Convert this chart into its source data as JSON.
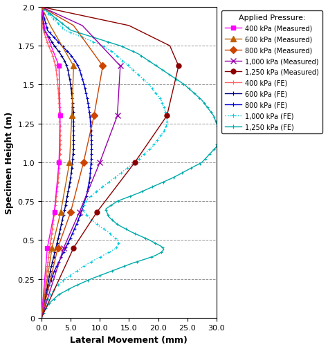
{
  "xlabel": "Lateral Movement (mm)",
  "ylabel": "Specimen Height (m)",
  "xlim": [
    0,
    30
  ],
  "ylim": [
    0,
    2
  ],
  "xticks": [
    0.0,
    5.0,
    10.0,
    15.0,
    20.0,
    25.0,
    30.0
  ],
  "xtick_labels": [
    "0.0",
    "5.0",
    "10.0",
    "15.0",
    "20.0",
    "25.0",
    "30.0"
  ],
  "yticks": [
    0,
    0.25,
    0.5,
    0.75,
    1.0,
    1.25,
    1.5,
    1.75,
    2.0
  ],
  "legend_title": "Applied Pressure:",
  "m400_h": [
    0,
    0.45,
    0.68,
    1.0,
    1.3,
    1.62,
    1.85,
    2.0
  ],
  "m400_x": [
    0,
    1.0,
    2.2,
    3.0,
    3.2,
    3.0,
    0.6,
    0
  ],
  "m400_mk_idx": [
    1,
    2,
    3,
    4,
    5
  ],
  "m400_color": "#FF00FF",
  "m600_h": [
    0,
    0.45,
    0.68,
    1.0,
    1.3,
    1.62,
    1.88,
    2.0
  ],
  "m600_x": [
    0,
    1.8,
    3.3,
    4.8,
    5.2,
    5.5,
    1.5,
    0
  ],
  "m600_mk_idx": [
    1,
    2,
    3,
    4,
    5
  ],
  "m600_color": "#C06000",
  "m800_h": [
    0,
    0.45,
    0.68,
    1.0,
    1.3,
    1.62,
    1.88,
    2.0
  ],
  "m800_x": [
    0,
    2.8,
    5.0,
    7.2,
    9.0,
    10.5,
    5.5,
    0
  ],
  "m800_mk_idx": [
    1,
    2,
    3,
    4,
    5
  ],
  "m800_color": "#CC4400",
  "m1000_h": [
    0,
    0.45,
    0.68,
    1.0,
    1.3,
    1.62,
    1.88,
    2.0
  ],
  "m1000_x": [
    0,
    3.8,
    6.5,
    10.0,
    13.0,
    13.5,
    7.0,
    0
  ],
  "m1000_mk_idx": [
    1,
    2,
    3,
    4,
    5
  ],
  "m1000_color": "#9900AA",
  "m1250_h": [
    0,
    0.45,
    0.68,
    1.0,
    1.3,
    1.62,
    1.75,
    1.88,
    2.0
  ],
  "m1250_x": [
    0,
    5.5,
    9.5,
    16.0,
    21.5,
    23.5,
    22.0,
    15.0,
    0
  ],
  "m1250_mk_idx": [
    1,
    2,
    3,
    4,
    5
  ],
  "m1250_color": "#8B0000",
  "fe_400_h": [
    0,
    0.1,
    0.3,
    0.5,
    0.7,
    0.9,
    1.0,
    1.1,
    1.2,
    1.3,
    1.4,
    1.5,
    1.6,
    1.65,
    1.7,
    1.75,
    1.85,
    2.0
  ],
  "fe_400_x": [
    0,
    0.3,
    0.9,
    1.6,
    2.3,
    2.9,
    3.1,
    3.2,
    3.2,
    3.1,
    3.0,
    2.8,
    2.5,
    2.2,
    1.8,
    1.2,
    0.3,
    0
  ],
  "fe_400_color": "#FF6666",
  "fe_600_h": [
    0,
    0.1,
    0.3,
    0.5,
    0.7,
    0.9,
    1.0,
    1.1,
    1.2,
    1.3,
    1.4,
    1.5,
    1.6,
    1.65,
    1.7,
    1.75,
    1.85,
    2.0
  ],
  "fe_600_x": [
    0,
    0.5,
    1.5,
    2.8,
    4.0,
    5.0,
    5.3,
    5.5,
    5.5,
    5.5,
    5.3,
    5.0,
    4.5,
    4.0,
    3.2,
    2.2,
    0.5,
    0
  ],
  "fe_600_color": "#000080",
  "fe_800_h": [
    0,
    0.1,
    0.2,
    0.3,
    0.4,
    0.5,
    0.6,
    0.7,
    0.8,
    0.9,
    1.0,
    1.1,
    1.2,
    1.3,
    1.4,
    1.5,
    1.6,
    1.65,
    1.7,
    1.75,
    1.85,
    2.0
  ],
  "fe_800_x": [
    0,
    0.5,
    1.2,
    2.2,
    3.5,
    4.8,
    6.0,
    7.0,
    7.8,
    8.3,
    8.5,
    8.6,
    8.5,
    8.3,
    7.9,
    7.3,
    6.5,
    5.8,
    4.8,
    3.5,
    1.0,
    0
  ],
  "fe_800_color": "#0000CD",
  "fe_1000_h": [
    0,
    0.05,
    0.1,
    0.15,
    0.2,
    0.25,
    0.3,
    0.35,
    0.4,
    0.42,
    0.44,
    0.46,
    0.48,
    0.5,
    0.55,
    0.6,
    0.65,
    0.7,
    0.75,
    0.8,
    0.9,
    1.0,
    1.1,
    1.2,
    1.25,
    1.3,
    1.4,
    1.5,
    1.6,
    1.65,
    1.7,
    1.75,
    1.85,
    2.0
  ],
  "fe_1000_x": [
    0,
    0.3,
    0.8,
    1.5,
    2.5,
    4.0,
    6.0,
    8.0,
    10.5,
    11.5,
    12.5,
    13.0,
    13.2,
    13.0,
    11.5,
    9.5,
    8.0,
    7.0,
    7.5,
    9.0,
    12.5,
    16.0,
    19.0,
    21.0,
    21.5,
    21.5,
    20.5,
    18.5,
    15.5,
    14.0,
    12.5,
    10.5,
    4.0,
    0
  ],
  "fe_1000_color": "#00CCDD",
  "fe_1250_h": [
    0,
    0.05,
    0.1,
    0.15,
    0.2,
    0.25,
    0.3,
    0.35,
    0.38,
    0.4,
    0.42,
    0.44,
    0.46,
    0.5,
    0.55,
    0.6,
    0.65,
    0.7,
    0.75,
    0.8,
    0.9,
    1.0,
    1.1,
    1.2,
    1.25,
    1.3,
    1.4,
    1.5,
    1.6,
    1.65,
    1.7,
    1.75,
    1.85,
    2.0
  ],
  "fe_1250_x": [
    0,
    0.5,
    1.5,
    3.0,
    5.5,
    8.5,
    12.0,
    15.5,
    18.0,
    19.5,
    20.5,
    21.0,
    20.5,
    18.5,
    15.5,
    13.0,
    11.5,
    11.0,
    13.0,
    16.5,
    22.5,
    27.5,
    30.0,
    30.5,
    30.0,
    29.5,
    27.5,
    24.5,
    20.5,
    18.5,
    16.5,
    13.5,
    5.0,
    0
  ],
  "fe_1250_color": "#00AAAA"
}
